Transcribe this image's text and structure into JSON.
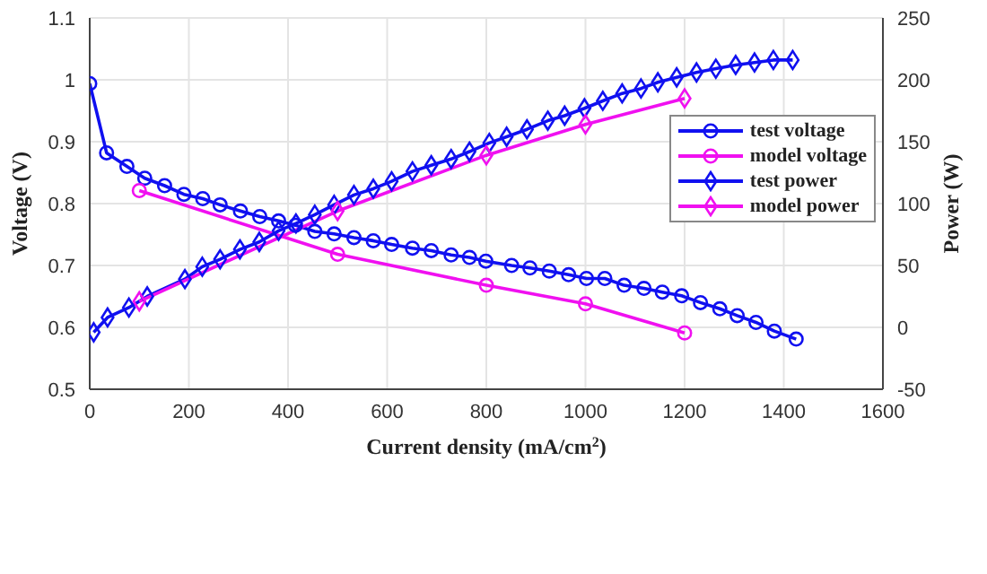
{
  "chart_data": {
    "type": "line",
    "xlabel": "Current density (mA/cm$^{2}$)",
    "ylabel": "Voltage (V)",
    "y2label": "Power (W)",
    "xlim": [
      0,
      1600
    ],
    "xticks": [
      0,
      200,
      400,
      600,
      800,
      1000,
      1200,
      1400,
      1600
    ],
    "ylim": [
      0.5,
      1.1
    ],
    "yticks": [
      0.5,
      0.6,
      0.7,
      0.8,
      0.9,
      1,
      1.1
    ],
    "y2lim": [
      -50,
      250
    ],
    "y2ticks": [
      -50,
      0,
      50,
      100,
      150,
      200,
      250
    ],
    "grid": true,
    "legend": "right",
    "line_style": "solid",
    "series": [
      {
        "name": "test voltage",
        "color": "#1010f0",
        "marker": "circle",
        "x": [
          0,
          34,
          75,
          111,
          151,
          190,
          228,
          263,
          304,
          343,
          381,
          415,
          454,
          493,
          533,
          572,
          609,
          651,
          689,
          729,
          766,
          799,
          851,
          888,
          927,
          966,
          1002,
          1039,
          1078,
          1118,
          1155,
          1194,
          1232,
          1271,
          1306,
          1344,
          1381,
          1425
        ],
        "values": [
          0.994,
          0.882,
          0.86,
          0.841,
          0.829,
          0.815,
          0.808,
          0.798,
          0.788,
          0.779,
          0.772,
          0.765,
          0.755,
          0.751,
          0.745,
          0.74,
          0.734,
          0.728,
          0.724,
          0.717,
          0.713,
          0.707,
          0.7,
          0.696,
          0.691,
          0.685,
          0.679,
          0.679,
          0.668,
          0.663,
          0.657,
          0.651,
          0.64,
          0.63,
          0.619,
          0.608,
          0.594,
          0.581
        ]
      },
      {
        "name": "model voltage",
        "color": "#f010f0",
        "marker": "circle",
        "x": [
          100,
          500,
          800,
          1000,
          1200
        ],
        "values": [
          0.821,
          0.718,
          0.668,
          0.638,
          0.591
        ]
      },
      {
        "name": "test power",
        "color": "#1010f0",
        "marker": "diamond",
        "axis": "y2",
        "x": [
          8,
          36,
          79,
          116,
          192,
          227,
          263,
          303,
          342,
          381,
          416,
          454,
          493,
          533,
          572,
          609,
          651,
          689,
          729,
          766,
          806,
          841,
          882,
          924,
          958,
          998,
          1035,
          1074,
          1112,
          1146,
          1184,
          1224,
          1263,
          1303,
          1341,
          1379,
          1418
        ],
        "values": [
          -4,
          8,
          16,
          25,
          39,
          49,
          55,
          63,
          69,
          78,
          84,
          91,
          99,
          107,
          112,
          118,
          126,
          131,
          136,
          142,
          149,
          154,
          160,
          167,
          171,
          177,
          183,
          189,
          193,
          198,
          202,
          206,
          209,
          212,
          214,
          216,
          216
        ]
      },
      {
        "name": "model power",
        "color": "#f010f0",
        "marker": "diamond",
        "axis": "y2",
        "x": [
          100,
          500,
          800,
          1000,
          1200
        ],
        "values": [
          21,
          94,
          139,
          164,
          185
        ]
      }
    ]
  }
}
